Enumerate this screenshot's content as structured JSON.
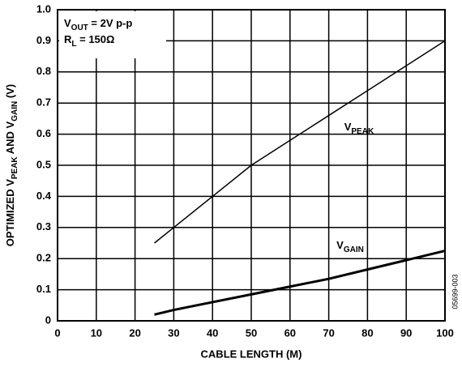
{
  "chart_data": {
    "type": "line",
    "x_label": "CABLE LENGTH (M)",
    "y_label": [
      "OPTIMIZED V",
      "PEAK",
      " AND V",
      "GAIN",
      " (V)"
    ],
    "annotations": [
      [
        "V",
        "OUT",
        " = 2V p-p"
      ],
      [
        "R",
        "L",
        " = 150Ω"
      ]
    ],
    "figure_code": "05699-003",
    "series": [
      {
        "name": [
          "V",
          "PEAK"
        ],
        "color": "#000000",
        "width": 1.5,
        "x": [
          25,
          30,
          40,
          50,
          60,
          70,
          80,
          90,
          100
        ],
        "values": [
          0.25,
          0.3,
          0.4,
          0.5,
          0.58,
          0.66,
          0.74,
          0.82,
          0.9
        ]
      },
      {
        "name": [
          "V",
          "GAIN"
        ],
        "color": "#000000",
        "width": 3,
        "x": [
          25,
          30,
          40,
          50,
          60,
          70,
          80,
          90,
          100
        ],
        "values": [
          0.02,
          0.035,
          0.06,
          0.085,
          0.11,
          0.135,
          0.165,
          0.195,
          0.225
        ]
      }
    ],
    "xlim": [
      0,
      100
    ],
    "xticks": [
      0,
      10,
      20,
      30,
      40,
      50,
      60,
      70,
      80,
      90,
      100
    ],
    "ylim": [
      0,
      1.0
    ],
    "yticks": [
      0,
      0.1,
      0.2,
      0.3,
      0.4,
      0.5,
      0.6,
      0.7,
      0.8,
      0.9,
      {
        "value": 1.0,
        "label": "1.0"
      }
    ],
    "grid": true
  }
}
